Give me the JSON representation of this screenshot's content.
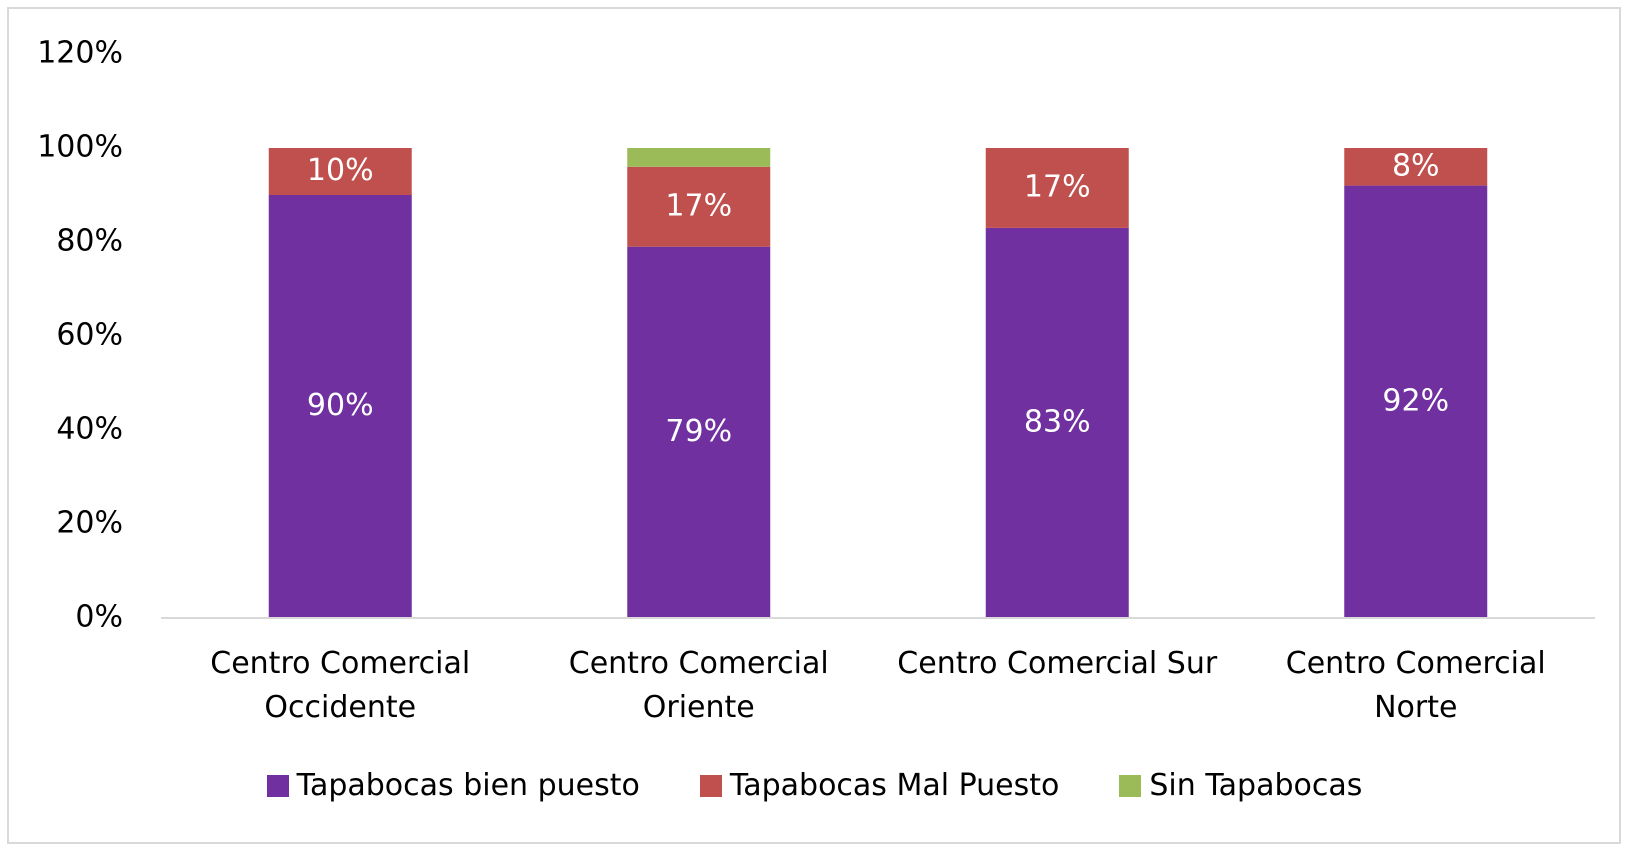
{
  "chart_data": {
    "type": "stacked_bar",
    "categories": [
      "Centro Comercial Occidente",
      "Centro Comercial Oriente",
      "Centro Comercial Sur",
      "Centro Comercial Norte"
    ],
    "series": [
      {
        "name": "Tapabocas bien puesto",
        "color": "#7030a0",
        "values": [
          90,
          79,
          83,
          92
        ],
        "value_labels": [
          "90%",
          "79%",
          "83%",
          "92%"
        ]
      },
      {
        "name": "Tapabocas Mal Puesto",
        "color": "#c0504d",
        "values": [
          10,
          17,
          17,
          8
        ],
        "value_labels": [
          "10%",
          "17%",
          "17%",
          "8%"
        ]
      },
      {
        "name": "Sin Tapabocas",
        "color": "#9bbb59",
        "values": [
          0,
          4,
          0,
          0
        ]
      }
    ],
    "ylim": [
      0,
      120
    ],
    "yticks": [
      {
        "value": 0,
        "label": "0%"
      },
      {
        "value": 20,
        "label": "20%"
      },
      {
        "value": 40,
        "label": "40%"
      },
      {
        "value": 60,
        "label": "60%"
      },
      {
        "value": 80,
        "label": "80%"
      },
      {
        "value": 100,
        "label": "100%"
      },
      {
        "value": 120,
        "label": "120%"
      }
    ],
    "grid": false,
    "legend": "bottom"
  }
}
